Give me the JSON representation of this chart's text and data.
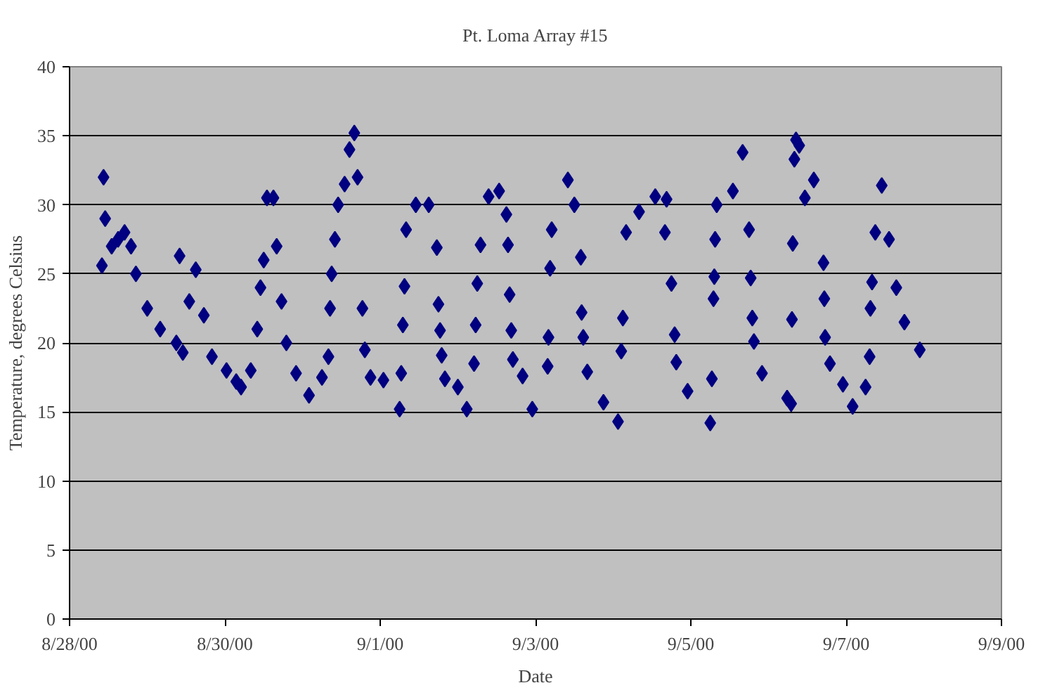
{
  "chart_data": {
    "type": "scatter",
    "title": "Pt. Loma Array #15",
    "xlabel": "Date",
    "ylabel": "Temperature, degrees Celsius",
    "xlim": [
      "2000-08-28",
      "2000-09-09"
    ],
    "xticks": [
      {
        "value": "2000-08-28",
        "label": "8/28/00"
      },
      {
        "value": "2000-08-30",
        "label": "8/30/00"
      },
      {
        "value": "2000-09-01",
        "label": "9/1/00"
      },
      {
        "value": "2000-09-03",
        "label": "9/3/00"
      },
      {
        "value": "2000-09-05",
        "label": "9/5/00"
      },
      {
        "value": "2000-09-07",
        "label": "9/7/00"
      },
      {
        "value": "2000-09-09",
        "label": "9/9/00"
      }
    ],
    "ylim": [
      0,
      40
    ],
    "yticks": [
      0,
      5,
      10,
      15,
      20,
      25,
      30,
      35,
      40
    ],
    "grid": "y",
    "marker": "diamond",
    "series": [
      {
        "color": "#000080",
        "x": [
          "2000-08-28T10:00",
          "2000-08-28T10:30",
          "2000-08-28T11:00",
          "2000-08-28T13:00",
          "2000-08-28T15:00",
          "2000-08-28T17:00",
          "2000-08-28T19:00",
          "2000-08-28T20:30",
          "2000-08-29T00:00",
          "2000-08-29T04:00",
          "2000-08-29T09:00",
          "2000-08-29T10:00",
          "2000-08-29T11:00",
          "2000-08-29T13:00",
          "2000-08-29T15:00",
          "2000-08-29T17:30",
          "2000-08-29T20:00",
          "2000-08-30T00:30",
          "2000-08-30T03:30",
          "2000-08-30T05:00",
          "2000-08-30T08:00",
          "2000-08-30T10:00",
          "2000-08-30T11:00",
          "2000-08-30T12:00",
          "2000-08-30T13:00",
          "2000-08-30T15:00",
          "2000-08-30T16:00",
          "2000-08-30T17:30",
          "2000-08-30T19:00",
          "2000-08-30T22:00",
          "2000-08-31T02:00",
          "2000-08-31T06:00",
          "2000-08-31T08:00",
          "2000-08-31T08:30",
          "2000-08-31T09:00",
          "2000-08-31T10:00",
          "2000-08-31T11:00",
          "2000-08-31T13:00",
          "2000-08-31T14:30",
          "2000-08-31T16:00",
          "2000-08-31T17:00",
          "2000-08-31T18:30",
          "2000-08-31T19:15",
          "2000-08-31T21:00",
          "2000-09-01T01:00",
          "2000-09-01T06:00",
          "2000-09-01T06:30",
          "2000-09-01T07:00",
          "2000-09-01T07:30",
          "2000-09-01T08:00",
          "2000-09-01T11:00",
          "2000-09-01T15:00",
          "2000-09-01T17:30",
          "2000-09-01T18:00",
          "2000-09-01T18:30",
          "2000-09-01T19:00",
          "2000-09-01T20:00",
          "2000-09-02T00:00",
          "2000-09-02T02:45",
          "2000-09-02T05:00",
          "2000-09-02T05:30",
          "2000-09-02T06:00",
          "2000-09-02T07:00",
          "2000-09-02T09:30",
          "2000-09-02T12:45",
          "2000-09-02T15:00",
          "2000-09-02T15:30",
          "2000-09-02T16:00",
          "2000-09-02T16:30",
          "2000-09-02T17:00",
          "2000-09-02T20:00",
          "2000-09-02T23:00",
          "2000-09-03T03:45",
          "2000-09-03T04:00",
          "2000-09-03T04:30",
          "2000-09-03T05:00",
          "2000-09-03T10:00",
          "2000-09-03T12:00",
          "2000-09-03T14:00",
          "2000-09-03T14:15",
          "2000-09-03T14:45",
          "2000-09-03T16:00",
          "2000-09-03T21:00",
          "2000-09-04T01:30",
          "2000-09-04T02:30",
          "2000-09-04T03:00",
          "2000-09-04T04:00",
          "2000-09-04T08:00",
          "2000-09-04T13:00",
          "2000-09-04T16:00",
          "2000-09-04T16:30",
          "2000-09-04T18:00",
          "2000-09-04T19:00",
          "2000-09-04T19:30",
          "2000-09-04T23:00",
          "2000-09-05T06:00",
          "2000-09-05T06:30",
          "2000-09-05T07:00",
          "2000-09-05T07:15",
          "2000-09-05T07:30",
          "2000-09-05T08:00",
          "2000-09-05T13:00",
          "2000-09-05T16:00",
          "2000-09-05T18:00",
          "2000-09-05T18:30",
          "2000-09-05T19:00",
          "2000-09-05T19:30",
          "2000-09-05T22:00",
          "2000-09-06T05:45",
          "2000-09-06T07:00",
          "2000-09-06T07:15",
          "2000-09-06T07:30",
          "2000-09-06T08:00",
          "2000-09-06T08:30",
          "2000-09-06T09:30",
          "2000-09-06T11:15",
          "2000-09-06T14:00",
          "2000-09-06T17:00",
          "2000-09-06T17:15",
          "2000-09-06T17:30",
          "2000-09-06T19:00",
          "2000-09-06T23:00",
          "2000-09-07T02:00",
          "2000-09-07T06:00",
          "2000-09-07T07:15",
          "2000-09-07T07:30",
          "2000-09-07T08:00",
          "2000-09-07T09:00",
          "2000-09-07T11:00",
          "2000-09-07T13:15",
          "2000-09-07T15:30",
          "2000-09-07T18:00",
          "2000-09-07T22:45"
        ],
        "values": [
          25.6,
          32,
          29,
          27,
          27.5,
          28,
          27,
          25,
          22.5,
          21,
          20,
          26.3,
          19.3,
          23,
          25.3,
          22,
          19,
          18,
          17.2,
          16.8,
          18,
          21,
          24,
          26,
          30.5,
          30.5,
          27,
          23,
          20,
          17.8,
          16.2,
          17.5,
          19,
          22.5,
          25,
          27.5,
          30,
          31.5,
          34,
          35.2,
          32,
          22.5,
          19.5,
          17.5,
          17.3,
          15.2,
          17.8,
          21.3,
          24.1,
          28.2,
          30,
          30,
          26.9,
          22.8,
          20.9,
          19.1,
          17.4,
          16.8,
          15.2,
          18.5,
          21.3,
          24.3,
          27.1,
          30.6,
          31,
          29.3,
          27.1,
          23.5,
          20.9,
          18.8,
          17.6,
          15.2,
          18.3,
          20.4,
          25.4,
          28.2,
          31.8,
          30,
          26.2,
          22.2,
          20.4,
          17.9,
          15.7,
          14.3,
          19.4,
          21.8,
          28,
          29.5,
          30.6,
          28,
          30.4,
          24.3,
          20.6,
          18.6,
          16.5,
          14.2,
          17.4,
          23.2,
          24.8,
          27.5,
          30,
          31,
          33.8,
          28.2,
          24.7,
          21.8,
          20.1,
          17.8,
          16,
          15.6,
          21.7,
          27.2,
          33.3,
          34.7,
          34.3,
          30.5,
          31.8,
          25.8,
          23.2,
          20.4,
          18.5,
          17,
          15.4,
          16.8,
          19,
          22.5,
          24.4,
          28,
          31.4,
          27.5,
          24,
          21.5,
          19.5
        ]
      }
    ]
  }
}
